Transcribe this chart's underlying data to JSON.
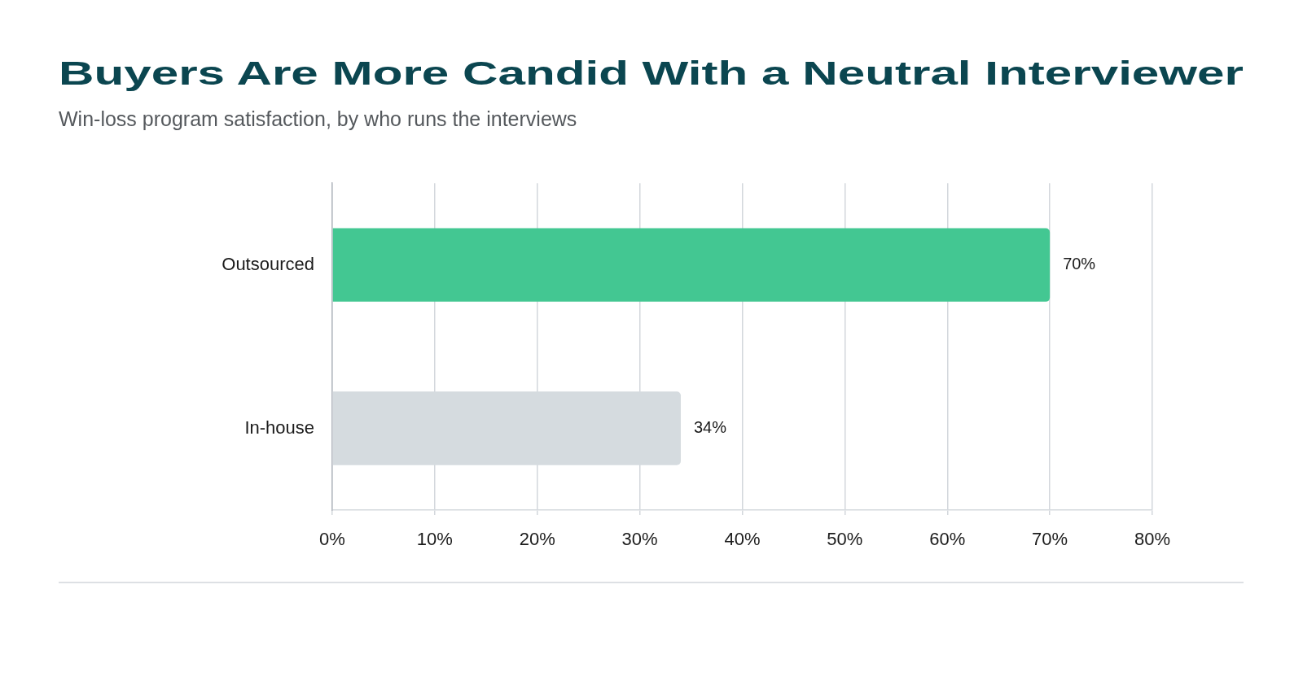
{
  "chart_data": {
    "type": "bar",
    "orientation": "horizontal",
    "title": "Buyers Are More Candid With a Neutral Interviewer",
    "subtitle": "Win-loss program satisfaction, by who runs the interviews",
    "categories": [
      "Outsourced",
      "In-house"
    ],
    "values": [
      70,
      34
    ],
    "colors": [
      "#43c792",
      "#d5dbdf"
    ],
    "value_labels": [
      "70%",
      "34%"
    ],
    "xlim": [
      0,
      80
    ],
    "xticks": [
      {
        "value": 0,
        "label": "0%"
      },
      {
        "value": 10,
        "label": "10%"
      },
      {
        "value": 20,
        "label": "20%"
      },
      {
        "value": 30,
        "label": "30%"
      },
      {
        "value": 40,
        "label": "40%"
      },
      {
        "value": 50,
        "label": "50%"
      },
      {
        "value": 60,
        "label": "60%"
      },
      {
        "value": 70,
        "label": "70%"
      },
      {
        "value": 80,
        "label": "80%"
      }
    ],
    "grid": "x",
    "legend": false
  }
}
